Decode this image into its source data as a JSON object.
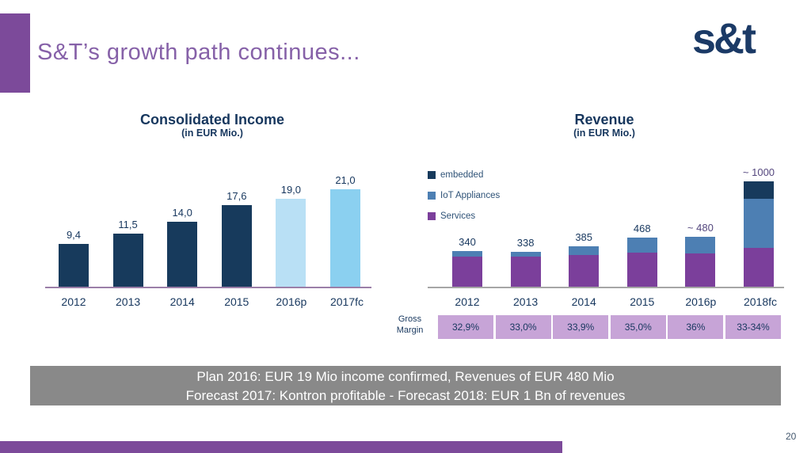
{
  "slide": {
    "title": "S&T’s growth path continues...",
    "logo_text": "s&t",
    "page_number": "20"
  },
  "colors": {
    "accent_purple": "#7c4a9a",
    "title_purple": "#8661a8",
    "navy_text": "#17375e",
    "bar_navy": "#173a5c",
    "light_blue_2016p": "#b9e0f5",
    "sky_blue_2017fc": "#8bd0f0",
    "iot_blue": "#4d7fb3",
    "services_purple": "#7b3f9b",
    "margin_cell_purple": "#c7a4d7",
    "banner_gray": "#898989"
  },
  "banner": {
    "line1": "Plan 2016: EUR 19 Mio income confirmed, Revenues of EUR 480 Mio",
    "line2": "Forecast 2017: Kontron profitable - Forecast 2018: EUR 1 Bn of revenues"
  },
  "chart_data": [
    {
      "id": "income",
      "type": "bar",
      "title": "Consolidated Income",
      "subtitle": "(in EUR Mio.)",
      "categories": [
        "2012",
        "2013",
        "2014",
        "2015",
        "2016p",
        "2017fc"
      ],
      "values": [
        9.4,
        11.5,
        14.0,
        17.6,
        19.0,
        21.0
      ],
      "value_labels": [
        "9,4",
        "11,5",
        "14,0",
        "17,6",
        "19,0",
        "21,0"
      ],
      "bar_colors": [
        "#173a5c",
        "#173a5c",
        "#173a5c",
        "#173a5c",
        "#b9e0f5",
        "#8bd0f0"
      ],
      "xlabel": "",
      "ylabel": "EUR Mio.",
      "ylim": [
        0,
        22
      ],
      "grid": false,
      "legend": "none"
    },
    {
      "id": "revenue",
      "type": "bar",
      "subtype": "stacked",
      "title": "Revenue",
      "subtitle": "(in EUR Mio.)",
      "categories": [
        "2012",
        "2013",
        "2014",
        "2015",
        "2016p",
        "2018fc"
      ],
      "series": [
        {
          "name": "Services",
          "color": "#7b3f9b",
          "values": [
            290,
            288,
            305,
            330,
            320,
            373
          ]
        },
        {
          "name": "IoT Appliances",
          "color": "#4d7fb3",
          "values": [
            50,
            50,
            80,
            138,
            160,
            462
          ]
        },
        {
          "name": "embedded",
          "color": "#173a5c",
          "values": [
            0,
            0,
            0,
            0,
            0,
            165
          ]
        }
      ],
      "totals": [
        340,
        338,
        385,
        468,
        480,
        1000
      ],
      "total_labels": [
        "340",
        "338",
        "385",
        "468",
        "~ 480",
        "~ 1000"
      ],
      "xlabel": "",
      "ylabel": "EUR Mio.",
      "ylim": [
        0,
        1050
      ],
      "grid": false,
      "legend_position": "top-left",
      "legend": [
        {
          "label": "embedded",
          "color": "#173a5c"
        },
        {
          "label": "IoT Appliances",
          "color": "#4d7fb3"
        },
        {
          "label": "Services",
          "color": "#7b3f9b"
        }
      ],
      "gross_margin": {
        "label_line1": "Gross",
        "label_line2": "Margin",
        "values": [
          "32,9%",
          "33,0%",
          "33,9%",
          "35,0%",
          "36%",
          "33-34%"
        ]
      }
    }
  ]
}
